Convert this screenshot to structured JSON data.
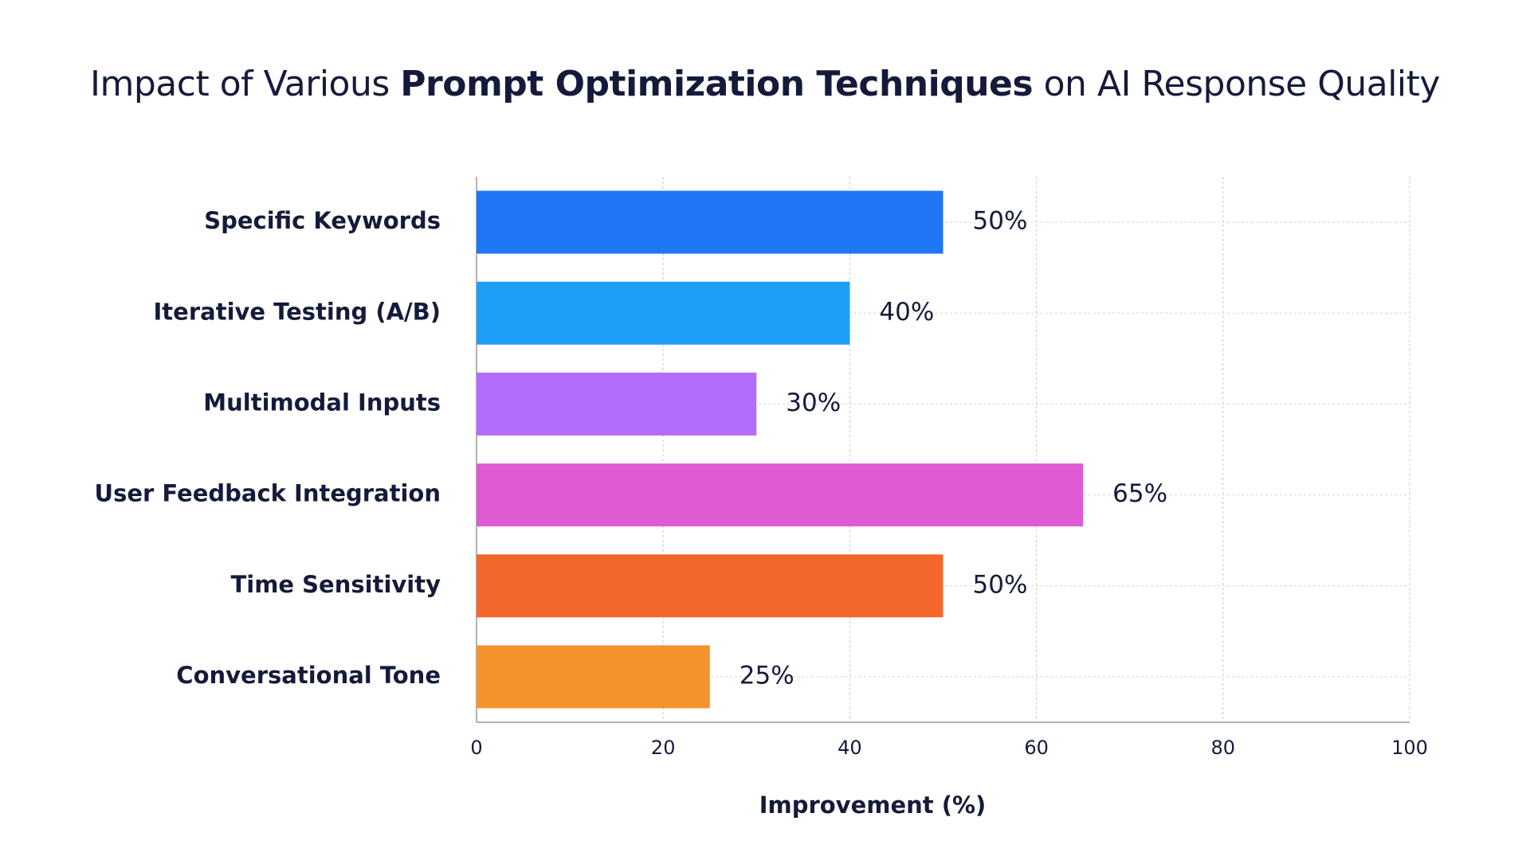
{
  "chart_data": {
    "type": "bar",
    "orientation": "horizontal",
    "title": [
      "Impact of Various",
      "Prompt Optimization Techniques",
      "on AI Response Quality"
    ],
    "categories": [
      "Specific Keywords",
      "Iterative Testing (A/B)",
      "Multimodal Inputs",
      "User Feedback Integration",
      "Time Sensitivity",
      "Conversational Tone"
    ],
    "values": [
      50,
      40,
      30,
      65,
      50,
      25
    ],
    "value_labels": [
      "50%",
      "40%",
      "30%",
      "65%",
      "50%",
      "25%"
    ],
    "colors": [
      "#1f77f5",
      "#1e9ff7",
      "#b36cf9",
      "#e05ad3",
      "#f4672a",
      "#f4922b"
    ],
    "xlim": [
      0,
      100
    ],
    "xticks": [
      0,
      20,
      40,
      60,
      80,
      100
    ],
    "xlabel": "Improvement (%)",
    "grid": true
  }
}
